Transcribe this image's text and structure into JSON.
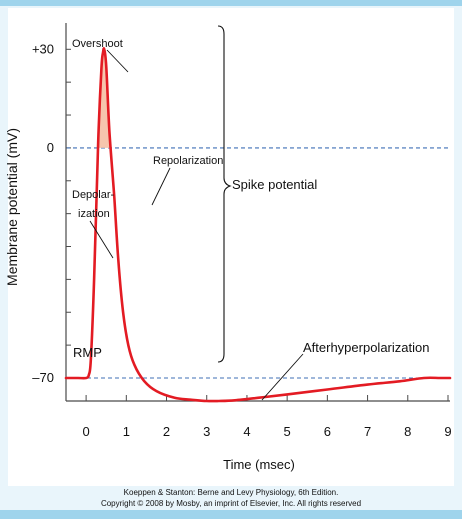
{
  "chart_data": {
    "type": "line",
    "title": "",
    "xlabel": "Time (msec)",
    "ylabel": "Membrane potential (mV)",
    "x_ticks": [
      "0",
      "1",
      "2",
      "3",
      "4",
      "5",
      "6",
      "7",
      "8",
      "9"
    ],
    "y_ticks": [
      {
        "value": 30,
        "label": "+30"
      },
      {
        "value": 0,
        "label": "0"
      },
      {
        "value": -70,
        "label": "–70"
      }
    ],
    "xlim": [
      -0.5,
      9.05
    ],
    "ylim": [
      -77,
      38
    ],
    "reference_lines_mv": [
      0,
      -70
    ],
    "series": [
      {
        "color": "#e31b23",
        "x": [
          -0.5,
          -0.2,
          0.0,
          0.07,
          0.12,
          0.2,
          0.3,
          0.38,
          0.42,
          0.45,
          0.5,
          0.58,
          0.7,
          0.8,
          0.92,
          1.05,
          1.2,
          1.45,
          1.75,
          2.2,
          2.6,
          3.0,
          3.3,
          3.7,
          4.3,
          5.0,
          6.0,
          7.0,
          7.8,
          8.4,
          8.8,
          9.05
        ],
        "y": [
          -70,
          -70,
          -70,
          -69,
          -64,
          -40,
          2,
          24,
          29,
          30,
          25,
          5,
          -15,
          -34,
          -50,
          -60,
          -66,
          -71,
          -74,
          -76,
          -76.6,
          -77,
          -77,
          -76.8,
          -76,
          -75,
          -73.5,
          -72,
          -71,
          -70,
          -70,
          -70
        ]
      }
    ],
    "annotations": {
      "overshoot": "Overshoot",
      "repolarization": "Repolarization",
      "depolarization_line1": "Depolar-",
      "depolarization_line2": "ization",
      "spike_potential": "Spike potential",
      "rmp": "RMP",
      "afterhyperpolarization": "Afterhyperpolarization"
    },
    "colors": {
      "curve": "#e31b23",
      "overshoot_fill": "#f6c5ad",
      "dashed_line": "#3f6fb6",
      "axis": "#4a4a4a"
    }
  },
  "credit": {
    "line1": "Koeppen & Stanton: Berne and Levy Physiology, 6th Edition.",
    "line2": "Copyright © 2008 by Mosby, an imprint of Elsevier, Inc. All rights reserved"
  }
}
